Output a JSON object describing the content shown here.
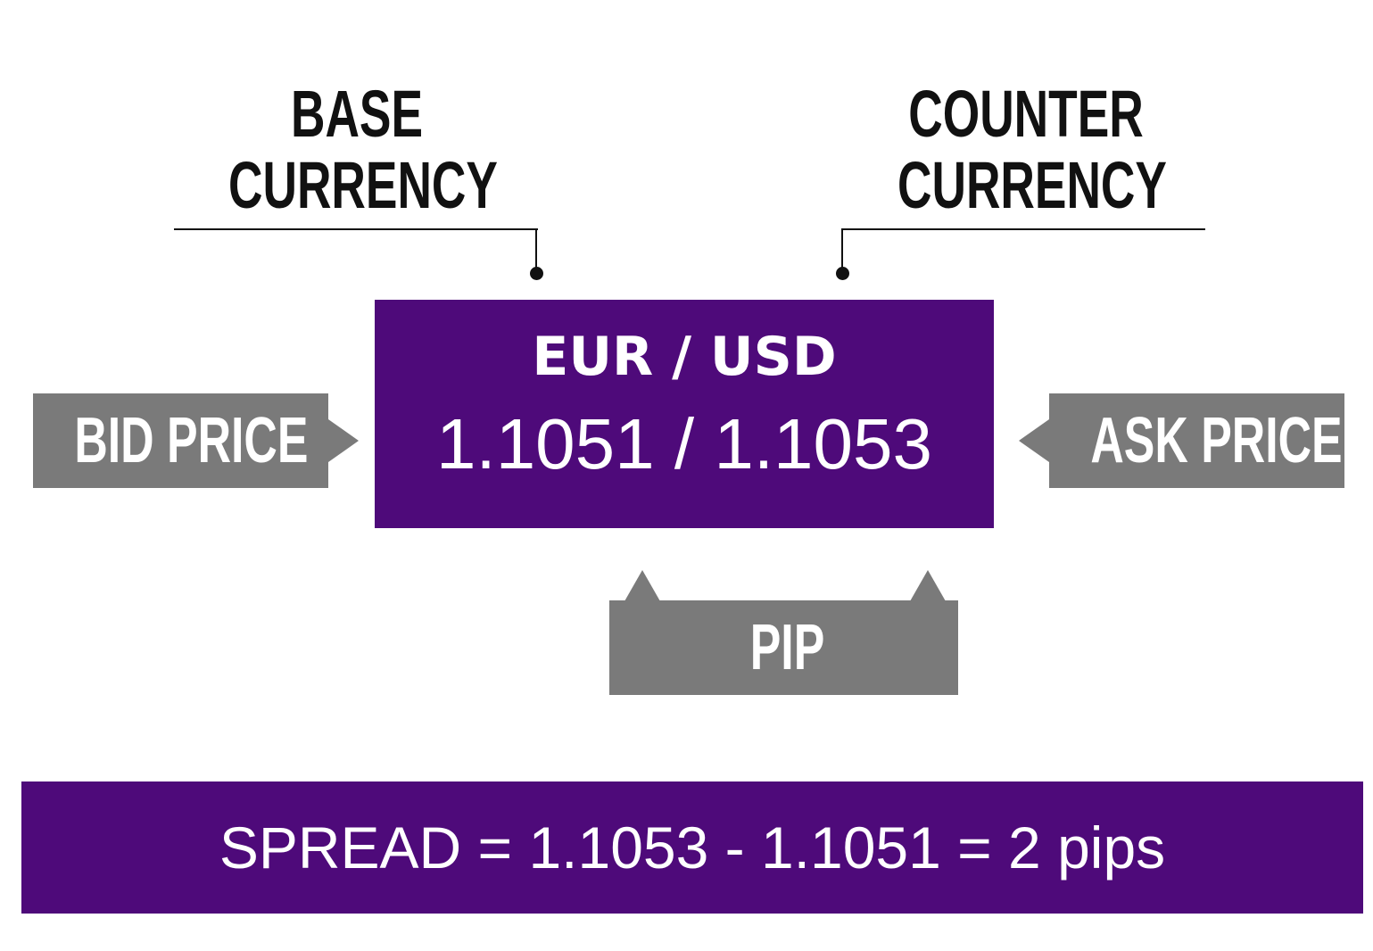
{
  "base_label": {
    "line1": "BASE",
    "line2": "CURRENCY"
  },
  "counter_label": {
    "line1": "COUNTER",
    "line2": "CURRENCY"
  },
  "quote": {
    "pair": "EUR / USD",
    "prices": "1.1051 / 1.1053"
  },
  "bid_label": "BID PRICE",
  "ask_label": "ASK PRICE",
  "pip_label": "PIP",
  "spread": "SPREAD = 1.1053 - 1.1051 = 2 pips",
  "colors": {
    "purple": "#4e0a7a",
    "gray": "#7a7a7a",
    "ink": "#111111"
  }
}
